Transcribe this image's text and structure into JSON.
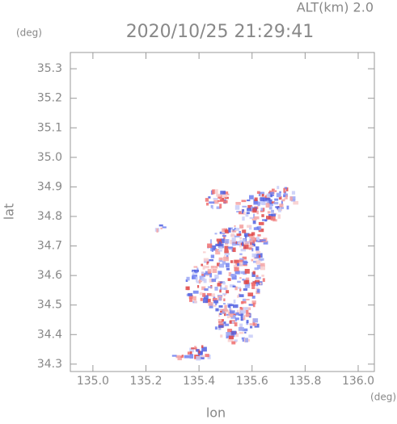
{
  "chart_data": {
    "type": "map",
    "title": "2020/10/25 21:29:41",
    "subtitle": "ALT(km) 2.0",
    "x_label": "lon",
    "x_unit": "(deg)",
    "y_label": "lat",
    "y_unit": "(deg)",
    "xlim": [
      134.915,
      136.061
    ],
    "ylim": [
      34.275,
      35.355
    ],
    "xticks": [
      {
        "value": 135.0,
        "label": "135.0"
      },
      135.2,
      135.4,
      135.6,
      135.8,
      {
        "value": 136.0,
        "label": "136.0"
      }
    ],
    "yticks": [
      34.3,
      34.4,
      34.5,
      34.6,
      34.7,
      34.8,
      34.9,
      {
        "value": 35.0,
        "label": "35.0"
      },
      35.1,
      35.2,
      35.3
    ]
  }
}
